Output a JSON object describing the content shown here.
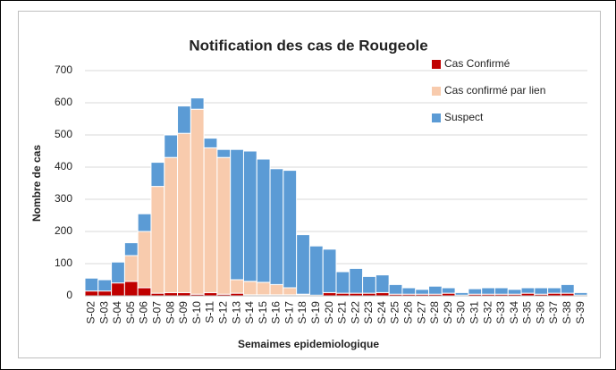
{
  "chart_data": {
    "type": "bar",
    "stacked": true,
    "title": "Notification des cas de Rougeole",
    "x_label": "Semaimes epidemiologique",
    "y_label": "Nombre de cas",
    "categories": [
      "S-02",
      "S-03",
      "S-04",
      "S-05",
      "S-06",
      "S-07",
      "S-08",
      "S-09",
      "S-10",
      "S-11",
      "S-12",
      "S-13",
      "S-14",
      "S-15",
      "S-16",
      "S-17",
      "S-18",
      "S-19",
      "S-20",
      "S-21",
      "S-22",
      "S-23",
      "S-24",
      "S-25",
      "S-26",
      "S-27",
      "S-28",
      "S-29",
      "S-30",
      "S-31",
      "S-32",
      "S-33",
      "S-34",
      "S-35",
      "S-36",
      "S-37",
      "S-38",
      "S-39"
    ],
    "series": [
      {
        "name": "Cas Confirmé",
        "color": "#c00000",
        "values": [
          15,
          15,
          40,
          45,
          25,
          8,
          10,
          10,
          5,
          10,
          5,
          8,
          3,
          3,
          3,
          3,
          2,
          2,
          10,
          8,
          8,
          8,
          10,
          5,
          5,
          5,
          5,
          8,
          2,
          5,
          5,
          5,
          5,
          8,
          5,
          8,
          8,
          2
        ]
      },
      {
        "name": "Cas confirmé par lien",
        "color": "#f8cbad",
        "values": [
          0,
          0,
          0,
          80,
          175,
          332,
          420,
          495,
          575,
          450,
          425,
          42,
          42,
          39,
          32,
          22,
          3,
          0,
          0,
          0,
          0,
          0,
          0,
          0,
          0,
          0,
          0,
          0,
          0,
          0,
          0,
          0,
          0,
          0,
          0,
          0,
          0,
          0
        ]
      },
      {
        "name": "Suspect",
        "color": "#5b9bd5",
        "values": [
          40,
          35,
          65,
          40,
          55,
          75,
          70,
          85,
          35,
          30,
          25,
          405,
          405,
          383,
          360,
          365,
          185,
          153,
          135,
          67,
          77,
          52,
          55,
          30,
          20,
          15,
          25,
          17,
          8,
          17,
          20,
          20,
          15,
          17,
          20,
          17,
          27,
          8
        ]
      }
    ],
    "ylim": [
      0,
      700
    ],
    "yticks": [
      0,
      100,
      200,
      300,
      400,
      500,
      600,
      700
    ],
    "grid": true,
    "legend": "top-right"
  }
}
